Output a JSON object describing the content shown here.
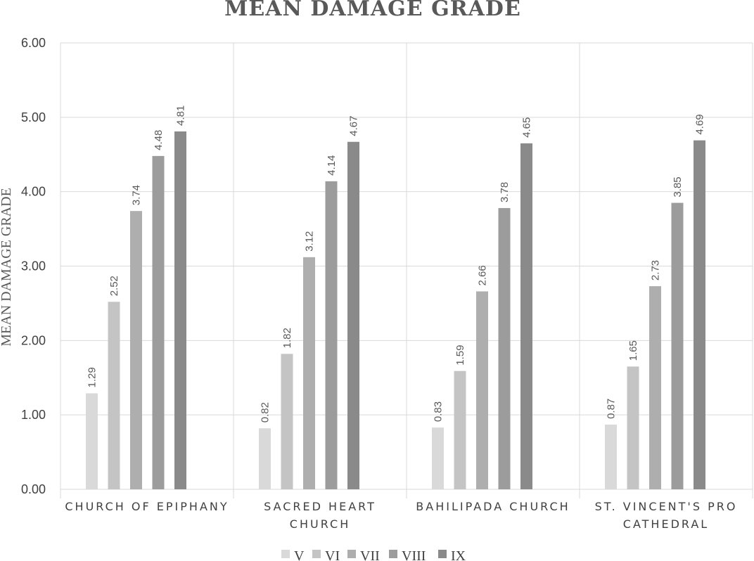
{
  "chart_data": {
    "type": "bar",
    "title": "MEAN DAMAGE GRADE",
    "xlabel": "",
    "ylabel": "MEAN DAMAGE GRADE",
    "ylim": [
      0,
      6
    ],
    "yticks": [
      "0.00",
      "1.00",
      "2.00",
      "3.00",
      "4.00",
      "5.00",
      "6.00"
    ],
    "categories": [
      "CHURCH OF EPIPHANY",
      "SACRED HEART CHURCH",
      "BAHILIPADA CHURCH",
      "ST. VINCENT'S PRO CATHEDRAL"
    ],
    "category_lines": [
      [
        "CHURCH OF EPIPHANY"
      ],
      [
        "SACRED HEART",
        "CHURCH"
      ],
      [
        "BAHILIPADA CHURCH"
      ],
      [
        "ST. VINCENT'S PRO",
        "CATHEDRAL"
      ]
    ],
    "series": [
      {
        "name": "V",
        "color": "#d9d9d9",
        "values": [
          1.29,
          0.82,
          0.83,
          0.87
        ],
        "labels": [
          "1.29",
          "0.82",
          "0.83",
          "0.87"
        ]
      },
      {
        "name": "VI",
        "color": "#c4c4c4",
        "values": [
          2.52,
          1.82,
          1.59,
          1.65
        ],
        "labels": [
          "2.52",
          "1.82",
          "1.59",
          "1.65"
        ]
      },
      {
        "name": "VII",
        "color": "#aeaeae",
        "values": [
          3.74,
          3.12,
          2.66,
          2.73
        ],
        "labels": [
          "3.74",
          "3.12",
          "2.66",
          "2.73"
        ]
      },
      {
        "name": "VIII",
        "color": "#9c9c9c",
        "values": [
          4.48,
          4.14,
          3.78,
          3.85
        ],
        "labels": [
          "4.48",
          "4.14",
          "3.78",
          "3.85"
        ]
      },
      {
        "name": "IX",
        "color": "#8a8a8a",
        "values": [
          4.81,
          4.67,
          4.65,
          4.69
        ],
        "labels": [
          "4.81",
          "4.67",
          "4.65",
          "4.69"
        ]
      }
    ],
    "grid": true,
    "legend_position": "bottom"
  }
}
